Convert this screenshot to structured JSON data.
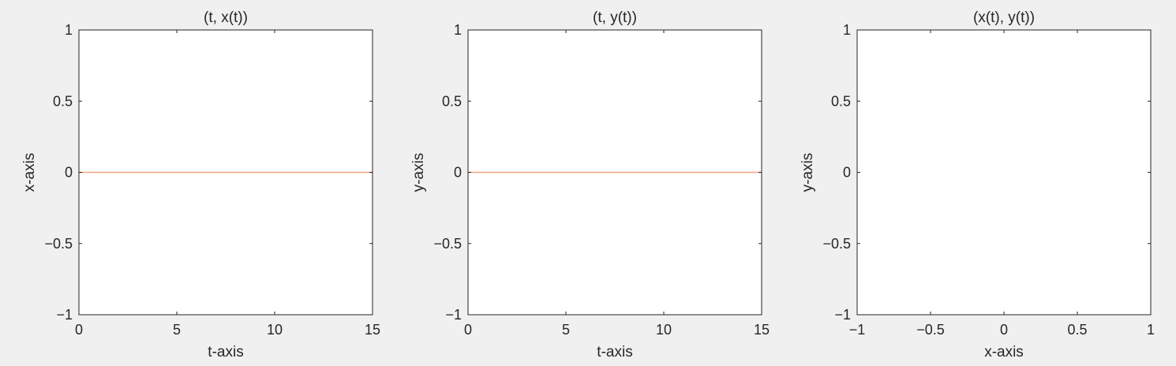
{
  "chart_data": [
    {
      "type": "line",
      "title": "(t, x(t))",
      "xlabel": "t-axis",
      "ylabel": "x-axis",
      "xlim": [
        0,
        15
      ],
      "ylim": [
        -1,
        1
      ],
      "xticks": [
        0,
        5,
        10,
        15
      ],
      "xtick_labels": [
        "0",
        "5",
        "10",
        "15"
      ],
      "yticks": [
        -1,
        -0.5,
        0,
        0.5,
        1
      ],
      "ytick_labels": [
        "−1",
        "−0.5",
        "0",
        "0.5",
        "1"
      ],
      "grid": false,
      "series": [
        {
          "x": [
            0,
            15
          ],
          "y": [
            0,
            0
          ],
          "color": "#f4a582"
        }
      ]
    },
    {
      "type": "line",
      "title": "(t, y(t))",
      "xlabel": "t-axis",
      "ylabel": "y-axis",
      "xlim": [
        0,
        15
      ],
      "ylim": [
        -1,
        1
      ],
      "xticks": [
        0,
        5,
        10,
        15
      ],
      "xtick_labels": [
        "0",
        "5",
        "10",
        "15"
      ],
      "yticks": [
        -1,
        -0.5,
        0,
        0.5,
        1
      ],
      "ytick_labels": [
        "−1",
        "−0.5",
        "0",
        "0.5",
        "1"
      ],
      "grid": false,
      "series": [
        {
          "x": [
            0,
            15
          ],
          "y": [
            0,
            0
          ],
          "color": "#f4a582"
        }
      ]
    },
    {
      "type": "line",
      "title": "(x(t), y(t))",
      "xlabel": "x-axis",
      "ylabel": "y-axis",
      "xlim": [
        -1,
        1
      ],
      "ylim": [
        -1,
        1
      ],
      "xticks": [
        -1,
        -0.5,
        0,
        0.5,
        1
      ],
      "xtick_labels": [
        "−1",
        "−0.5",
        "0",
        "0.5",
        "1"
      ],
      "yticks": [
        -1,
        -0.5,
        0,
        0.5,
        1
      ],
      "ytick_labels": [
        "−1",
        "−0.5",
        "0",
        "0.5",
        "1"
      ],
      "grid": false,
      "series": []
    }
  ]
}
